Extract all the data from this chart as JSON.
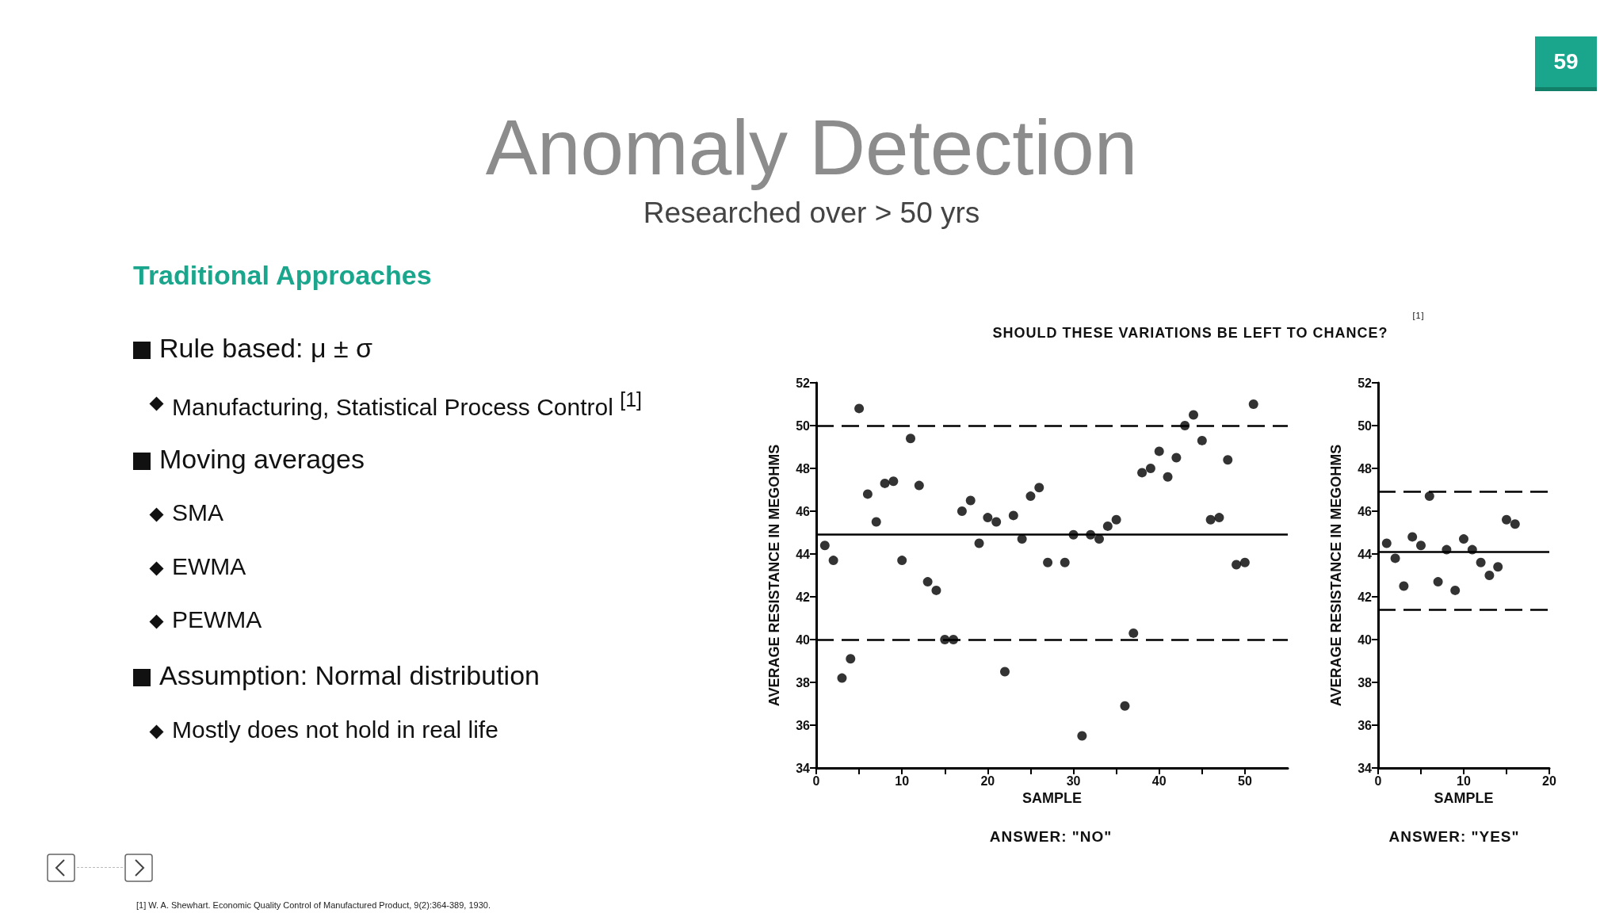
{
  "chart_data": [
    {
      "type": "other",
      "title": "Anomaly Detection",
      "subtitle": "Researched over > 50 yrs",
      "annotations": [
        "Traditional Approaches",
        "Rule based: μ ± σ",
        "Manufacturing, Statistical Process Control $^{[1]}$",
        "Moving averages",
        "SMA",
        "EWMA",
        "PEWMA",
        "Assumption: Normal distribution",
        "Mostly does not hold in real life",
        "59",
        "[1] W. A. Shewhart. Economic Quality Control of Manufactured Product, 9(2):364-389, 1930."
      ]
    },
    {
      "type": "scatter",
      "title": "SHOULD THESE VARIATIONS BE LEFT TO CHANCE?",
      "xlabel": "SAMPLE",
      "ylabel": "AVERAGE RESISTANCE IN MEGOHMS",
      "annotations": [
        "[1]",
        "ANSWER: \"NO\""
      ],
      "marker": "circle",
      "color": "#000000",
      "x": [
        1,
        2,
        3,
        4,
        5,
        6,
        7,
        8,
        9,
        10,
        11,
        12,
        13,
        14,
        15,
        16,
        17,
        18,
        19,
        20,
        21,
        22,
        23,
        24,
        25,
        26,
        27,
        29,
        30,
        31,
        32,
        33,
        34,
        35,
        36,
        37,
        38,
        39,
        40,
        41,
        42,
        43,
        44,
        45,
        46,
        47,
        48,
        49,
        50,
        51
      ],
      "values": [
        44.4,
        43.7,
        38.2,
        39.1,
        50.8,
        46.8,
        45.5,
        47.3,
        47.4,
        43.7,
        49.4,
        47.2,
        42.7,
        42.3,
        40.0,
        40.0,
        46.0,
        46.5,
        44.5,
        45.7,
        45.5,
        38.5,
        45.8,
        44.7,
        46.7,
        47.1,
        43.6,
        43.6,
        44.9,
        35.5,
        44.9,
        44.7,
        45.3,
        45.6,
        36.9,
        40.3,
        47.8,
        48.0,
        48.8,
        47.6,
        48.5,
        50.0,
        50.5,
        49.3,
        45.6,
        45.7,
        48.4,
        43.5,
        43.6,
        51.0
      ],
      "xlim": [
        0,
        55
      ],
      "xticks": [
        0,
        {
          "value": 5,
          "label": null
        },
        10,
        {
          "value": 15,
          "label": null
        },
        20,
        {
          "value": 25,
          "label": null
        },
        30,
        {
          "value": 35,
          "label": null
        },
        40,
        {
          "value": 45,
          "label": null
        },
        50
      ],
      "ylim": [
        34,
        52
      ],
      "yticks": [
        34,
        36,
        38,
        40,
        42,
        44,
        46,
        48,
        50,
        52
      ],
      "ref_lines": [
        {
          "axis": "y",
          "value": 50.0,
          "color": "#000000",
          "line_style": "dashed"
        },
        {
          "axis": "y",
          "value": 44.9,
          "color": "#000000",
          "line_style": "solid"
        },
        {
          "axis": "y",
          "value": 40.0,
          "color": "#000000",
          "line_style": "dashed"
        }
      ]
    },
    {
      "type": "scatter",
      "xlabel": "SAMPLE",
      "ylabel": "AVERAGE RESISTANCE IN MEGOHMS",
      "annotations": [
        "ANSWER: \"YES\""
      ],
      "marker": "circle",
      "color": "#000000",
      "x": [
        1,
        2,
        3,
        4,
        5,
        6,
        7,
        8,
        9,
        10,
        11,
        12,
        13,
        14,
        15,
        16
      ],
      "values": [
        44.5,
        43.8,
        42.5,
        44.8,
        44.4,
        46.7,
        42.7,
        44.2,
        42.3,
        44.7,
        44.2,
        43.6,
        43.0,
        43.4,
        45.6,
        45.4
      ],
      "xlim": [
        0,
        20
      ],
      "xticks": [
        0,
        {
          "value": 5,
          "label": null
        },
        10,
        {
          "value": 15,
          "label": null
        },
        20
      ],
      "ylim": [
        34,
        52
      ],
      "yticks": [
        34,
        36,
        38,
        40,
        42,
        44,
        46,
        48,
        50,
        52
      ],
      "ref_lines": [
        {
          "axis": "y",
          "value": 46.9,
          "color": "#000000",
          "line_style": "dashed"
        },
        {
          "axis": "y",
          "value": 44.1,
          "color": "#000000",
          "line_style": "solid"
        },
        {
          "axis": "y",
          "value": 41.4,
          "color": "#000000",
          "line_style": "dashed"
        }
      ]
    }
  ]
}
